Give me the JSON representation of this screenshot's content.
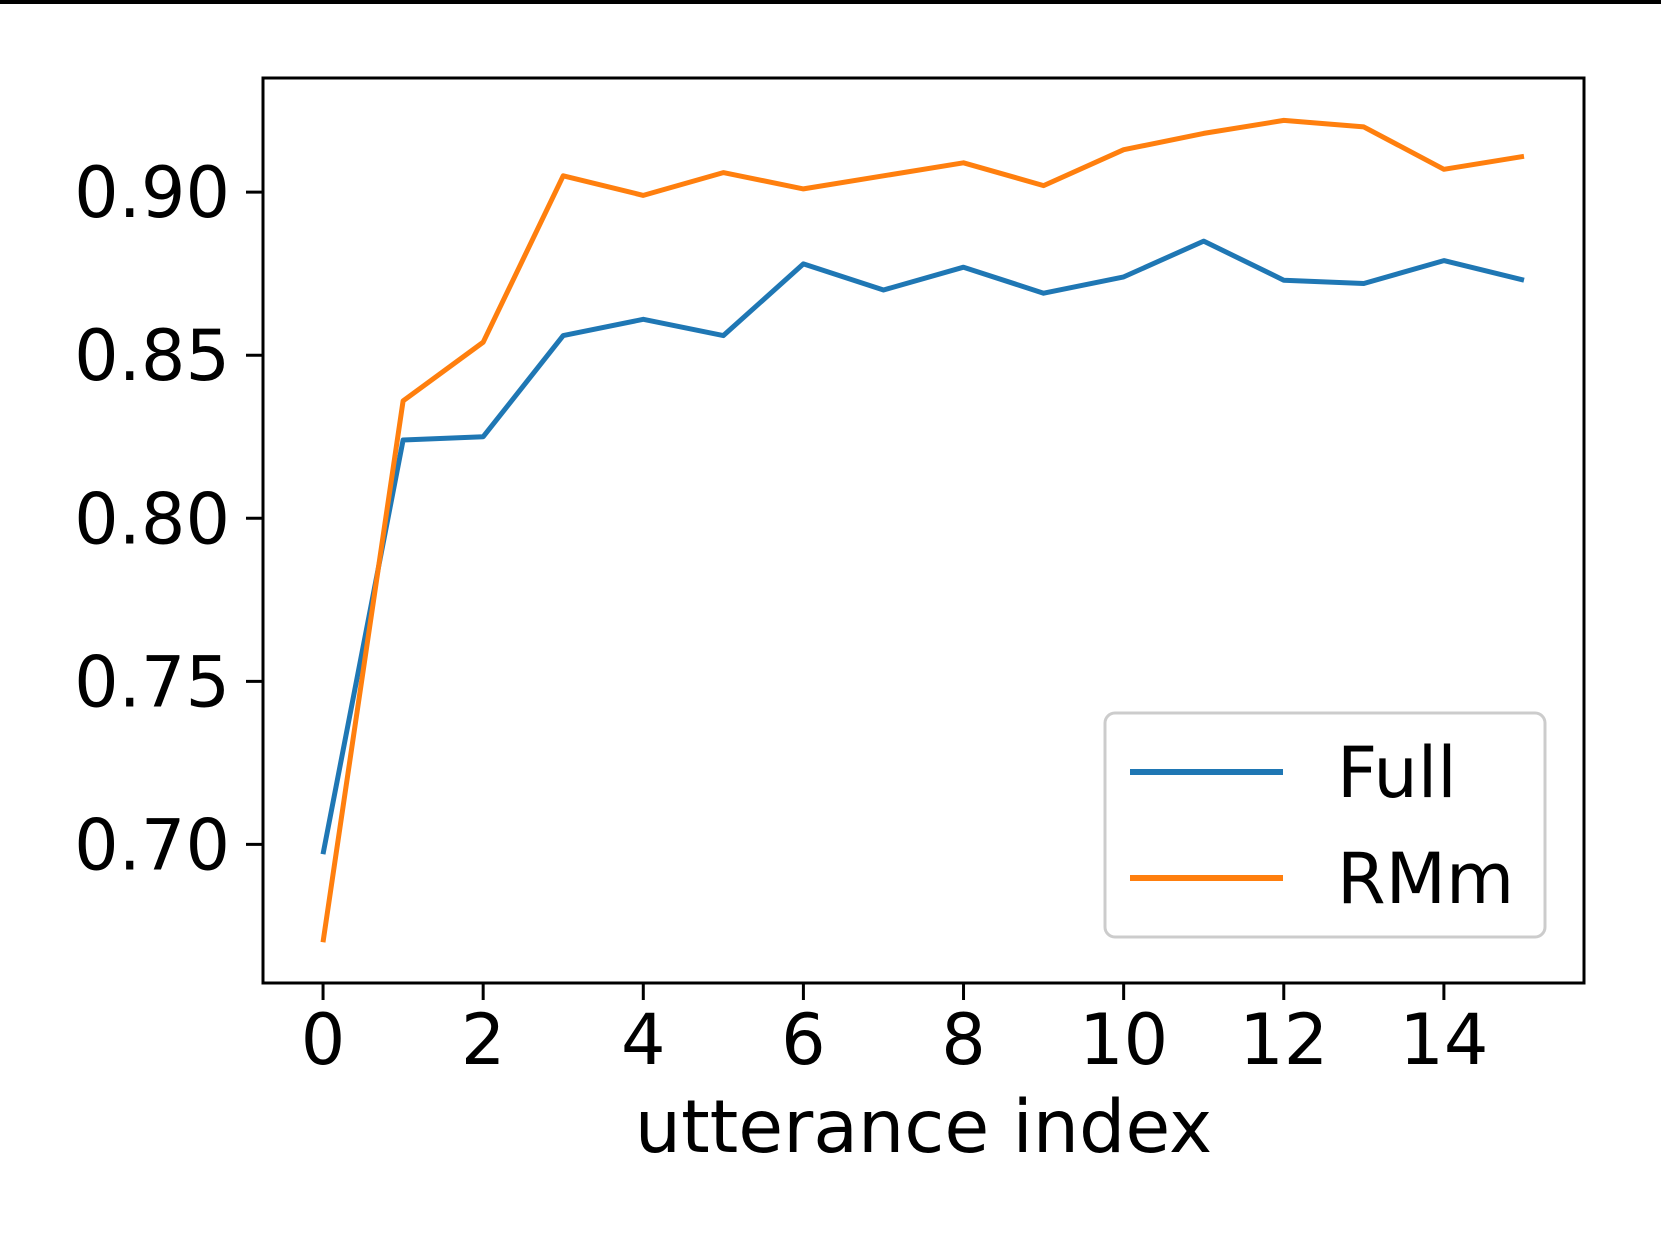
{
  "chart_data": {
    "type": "line",
    "title": "",
    "xlabel": "utterance index",
    "ylabel": "",
    "x": [
      0,
      1,
      2,
      3,
      4,
      5,
      6,
      7,
      8,
      9,
      10,
      11,
      12,
      13,
      14,
      15
    ],
    "series": [
      {
        "name": "Full",
        "color": "#1f77b4",
        "values": [
          0.697,
          0.824,
          0.825,
          0.856,
          0.861,
          0.856,
          0.878,
          0.87,
          0.877,
          0.869,
          0.874,
          0.885,
          0.873,
          0.872,
          0.879,
          0.873
        ]
      },
      {
        "name": "RMm",
        "color": "#ff7f0e",
        "values": [
          0.67,
          0.836,
          0.854,
          0.905,
          0.899,
          0.906,
          0.901,
          0.905,
          0.909,
          0.902,
          0.913,
          0.918,
          0.922,
          0.92,
          0.907,
          0.911
        ]
      }
    ],
    "xlim": [
      -0.75,
      15.75
    ],
    "ylim": [
      0.6575,
      0.935
    ],
    "xticks": {
      "values": [
        0,
        2,
        4,
        6,
        8,
        10,
        12,
        14
      ],
      "labels": [
        "0",
        "2",
        "4",
        "6",
        "8",
        "10",
        "12",
        "14"
      ]
    },
    "yticks": {
      "values": [
        0.9,
        0.85,
        0.8,
        0.75,
        0.7
      ],
      "labels": [
        "0.90",
        "0.85",
        "0.80",
        "0.75",
        "0.70"
      ]
    },
    "grid": false,
    "legend_position": "lower right",
    "colors": {
      "spine": "#000000",
      "tick": "#000000",
      "text": "#000000",
      "legend_edge": "#cccccc",
      "legend_fill": "#ffffff",
      "background": "#ffffff"
    }
  }
}
